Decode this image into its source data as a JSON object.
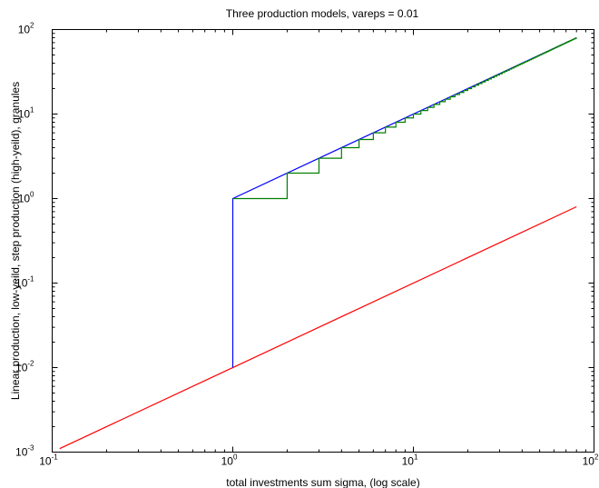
{
  "chart_data": {
    "type": "line",
    "title": "Three production models, vareps = 0.01",
    "xlabel": "total investments sum sigma, (log scale)",
    "ylabel": "Linear production, low-yeild, step production (high-yeild), granules",
    "x_scale": "log",
    "y_scale": "log",
    "xlim": [
      0.1,
      100
    ],
    "ylim": [
      0.001,
      100
    ],
    "x_ticks": [
      {
        "base": "10",
        "exp": "-1",
        "value": 0.1
      },
      {
        "base": "10",
        "exp": "0",
        "value": 1
      },
      {
        "base": "10",
        "exp": "1",
        "value": 10
      },
      {
        "base": "10",
        "exp": "2",
        "value": 100
      }
    ],
    "y_ticks": [
      {
        "base": "10",
        "exp": "-3",
        "value": 0.001
      },
      {
        "base": "10",
        "exp": "-2",
        "value": 0.01
      },
      {
        "base": "10",
        "exp": "-1",
        "value": 0.1
      },
      {
        "base": "10",
        "exp": "0",
        "value": 1
      },
      {
        "base": "10",
        "exp": "1",
        "value": 10
      },
      {
        "base": "10",
        "exp": "2",
        "value": 100
      }
    ],
    "grid": false,
    "legend": "none",
    "series": [
      {
        "color": "#ff0000",
        "x": [
          0.11,
          80
        ],
        "y": [
          0.0011,
          0.8
        ]
      },
      {
        "color": "#0000ff",
        "x": [
          1,
          1,
          1,
          80
        ],
        "y": [
          0.01,
          0.5,
          1,
          80
        ]
      },
      {
        "color": "#008000",
        "step_integers": true,
        "x_start": 1,
        "x_end": 80,
        "y_start": 1
      }
    ]
  }
}
